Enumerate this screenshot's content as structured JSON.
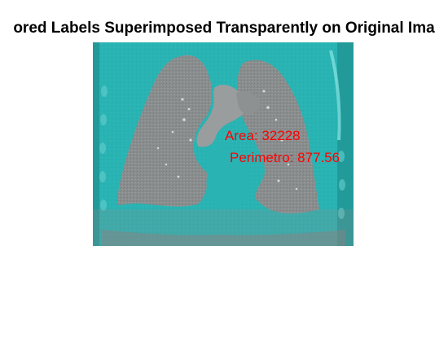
{
  "figure": {
    "title": "ored Labels Superimposed Transparently on Original Ima"
  },
  "annotations": {
    "area": "Area: 32228",
    "perimeter": "Perimetro: 877.56"
  },
  "colors": {
    "overlay": "#2ab3b3",
    "lung": "#8a8d8d",
    "annotation_text": "#ff0000",
    "background": "#ffffff"
  },
  "image": {
    "content": "coronal CT slice of chest with segmented lungs"
  }
}
